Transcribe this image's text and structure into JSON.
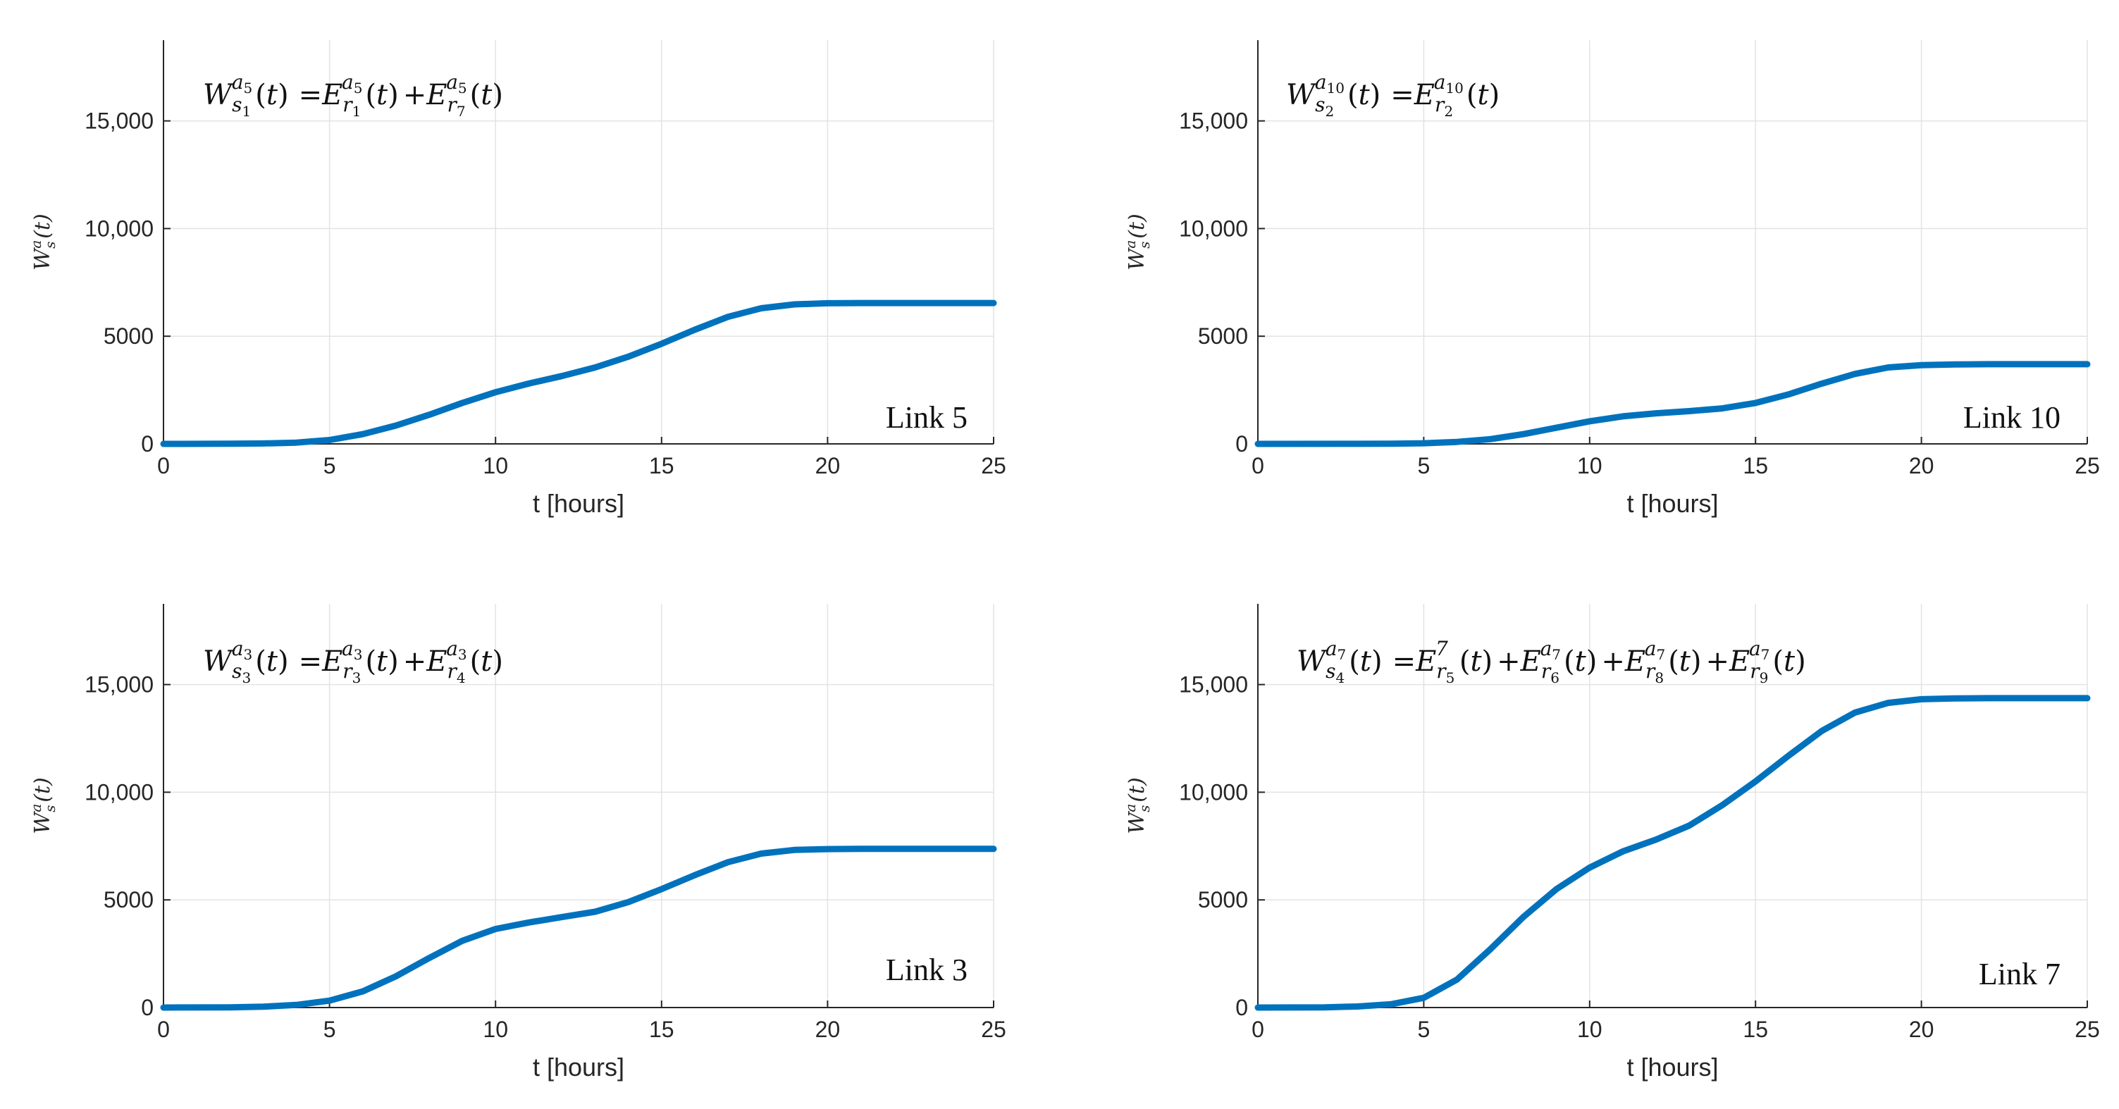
{
  "figure": {
    "colors": {
      "line": "#0072BD",
      "grid": "#e3e3e3",
      "axis": "#262626"
    }
  },
  "chart_data": [
    {
      "type": "line",
      "panel": "top-left",
      "equation": {
        "lhs": {
          "base": "W",
          "sub": "s",
          "subsub": "1",
          "sup": "a",
          "supsub": "5"
        },
        "terms": [
          {
            "sep": "=",
            "base": "E",
            "sub": "r",
            "subsub": "1",
            "sup": "a",
            "supsub": "5"
          },
          {
            "sep": "+",
            "base": "E",
            "sub": "r",
            "subsub": "7",
            "sup": "a",
            "supsub": "5"
          }
        ]
      },
      "annotation": "Link 5",
      "xlabel": "t [hours]",
      "ylabel": "W_s^a(t)",
      "xlim": [
        0,
        25
      ],
      "ylim": [
        0,
        18750
      ],
      "xticks": [
        0,
        5,
        10,
        15,
        20,
        25
      ],
      "yticks": [
        0,
        5000,
        10000,
        15000
      ],
      "ytick_labels": [
        "0",
        "5000",
        "10,000",
        "15,000"
      ],
      "grid": true,
      "series": [
        {
          "name": "Link 5",
          "x": [
            0,
            2,
            3,
            4,
            5,
            6,
            7,
            8,
            9,
            10,
            11,
            12,
            13,
            14,
            15,
            16,
            17,
            18,
            19,
            20,
            21,
            22,
            23,
            24,
            25
          ],
          "y": [
            0,
            5,
            20,
            60,
            180,
            450,
            850,
            1350,
            1900,
            2400,
            2800,
            3150,
            3550,
            4050,
            4650,
            5300,
            5900,
            6300,
            6480,
            6530,
            6540,
            6540,
            6540,
            6540,
            6540
          ]
        }
      ]
    },
    {
      "type": "line",
      "panel": "top-right",
      "equation": {
        "lhs": {
          "base": "W",
          "sub": "s",
          "subsub": "2",
          "sup": "a",
          "supsub": "10"
        },
        "terms": [
          {
            "sep": "=",
            "base": "E",
            "sub": "r",
            "subsub": "2",
            "sup": "a",
            "supsub": "10"
          }
        ]
      },
      "annotation": "Link 10",
      "xlabel": "t [hours]",
      "ylabel": "W_s^a(t)",
      "xlim": [
        0,
        25
      ],
      "ylim": [
        0,
        18750
      ],
      "xticks": [
        0,
        5,
        10,
        15,
        20,
        25
      ],
      "yticks": [
        0,
        5000,
        10000,
        15000
      ],
      "ytick_labels": [
        "0",
        "5000",
        "10,000",
        "15,000"
      ],
      "grid": true,
      "series": [
        {
          "name": "Link 10",
          "x": [
            0,
            3,
            4,
            5,
            6,
            7,
            8,
            9,
            10,
            11,
            12,
            13,
            14,
            15,
            16,
            17,
            18,
            19,
            20,
            21,
            22,
            23,
            24,
            25
          ],
          "y": [
            0,
            2,
            10,
            30,
            90,
            220,
            450,
            750,
            1050,
            1280,
            1420,
            1520,
            1650,
            1900,
            2300,
            2800,
            3250,
            3550,
            3660,
            3690,
            3700,
            3700,
            3700,
            3700
          ]
        }
      ]
    },
    {
      "type": "line",
      "panel": "bottom-left",
      "equation": {
        "lhs": {
          "base": "W",
          "sub": "s",
          "subsub": "3",
          "sup": "a",
          "supsub": "3"
        },
        "terms": [
          {
            "sep": "=",
            "base": "E",
            "sub": "r",
            "subsub": "3",
            "sup": "a",
            "supsub": "3"
          },
          {
            "sep": "+",
            "base": "E",
            "sub": "r",
            "subsub": "4",
            "sup": "a",
            "supsub": "3"
          }
        ]
      },
      "annotation": "Link 3",
      "xlabel": "t [hours]",
      "ylabel": "W_s^a(t)",
      "xlim": [
        0,
        25
      ],
      "ylim": [
        0,
        18750
      ],
      "xticks": [
        0,
        5,
        10,
        15,
        20,
        25
      ],
      "yticks": [
        0,
        5000,
        10000,
        15000
      ],
      "ytick_labels": [
        "0",
        "5000",
        "10,000",
        "15,000"
      ],
      "grid": true,
      "series": [
        {
          "name": "Link 3",
          "x": [
            0,
            2,
            3,
            4,
            5,
            6,
            7,
            8,
            9,
            10,
            11,
            12,
            13,
            14,
            15,
            16,
            17,
            18,
            19,
            20,
            21,
            22,
            23,
            24,
            25
          ],
          "y": [
            0,
            10,
            40,
            120,
            320,
            750,
            1450,
            2300,
            3100,
            3650,
            3950,
            4200,
            4450,
            4900,
            5500,
            6150,
            6750,
            7150,
            7320,
            7360,
            7370,
            7370,
            7370,
            7370,
            7370
          ]
        }
      ]
    },
    {
      "type": "line",
      "panel": "bottom-right",
      "equation": {
        "lhs": {
          "base": "W",
          "sub": "s",
          "subsub": "4",
          "sup": "a",
          "supsub": "7"
        },
        "terms": [
          {
            "sep": "=",
            "base": "E",
            "sub": "r",
            "subsub": "5",
            "sup": "7",
            "supsub": ""
          },
          {
            "sep": "+",
            "base": "E",
            "sub": "r",
            "subsub": "6",
            "sup": "a",
            "supsub": "7"
          },
          {
            "sep": "+",
            "base": "E",
            "sub": "r",
            "subsub": "8",
            "sup": "a",
            "supsub": "7"
          },
          {
            "sep": "+",
            "base": "E",
            "sub": "r",
            "subsub": "9",
            "sup": "a",
            "supsub": "7"
          }
        ]
      },
      "annotation": "Link 7",
      "xlabel": "t [hours]",
      "ylabel": "W_s^a(t)",
      "xlim": [
        0,
        25
      ],
      "ylim": [
        0,
        18750
      ],
      "xticks": [
        0,
        5,
        10,
        15,
        20,
        25
      ],
      "yticks": [
        0,
        5000,
        10000,
        15000
      ],
      "ytick_labels": [
        "0",
        "5000",
        "10,000",
        "15,000"
      ],
      "grid": true,
      "series": [
        {
          "name": "Link 7",
          "x": [
            0,
            2,
            3,
            4,
            5,
            6,
            7,
            8,
            9,
            10,
            11,
            12,
            13,
            14,
            15,
            16,
            17,
            18,
            19,
            20,
            21,
            22,
            23,
            24,
            25
          ],
          "y": [
            0,
            10,
            50,
            150,
            450,
            1300,
            2700,
            4200,
            5500,
            6500,
            7250,
            7800,
            8450,
            9400,
            10500,
            11700,
            12850,
            13700,
            14150,
            14320,
            14360,
            14370,
            14370,
            14370,
            14370
          ]
        }
      ]
    }
  ]
}
